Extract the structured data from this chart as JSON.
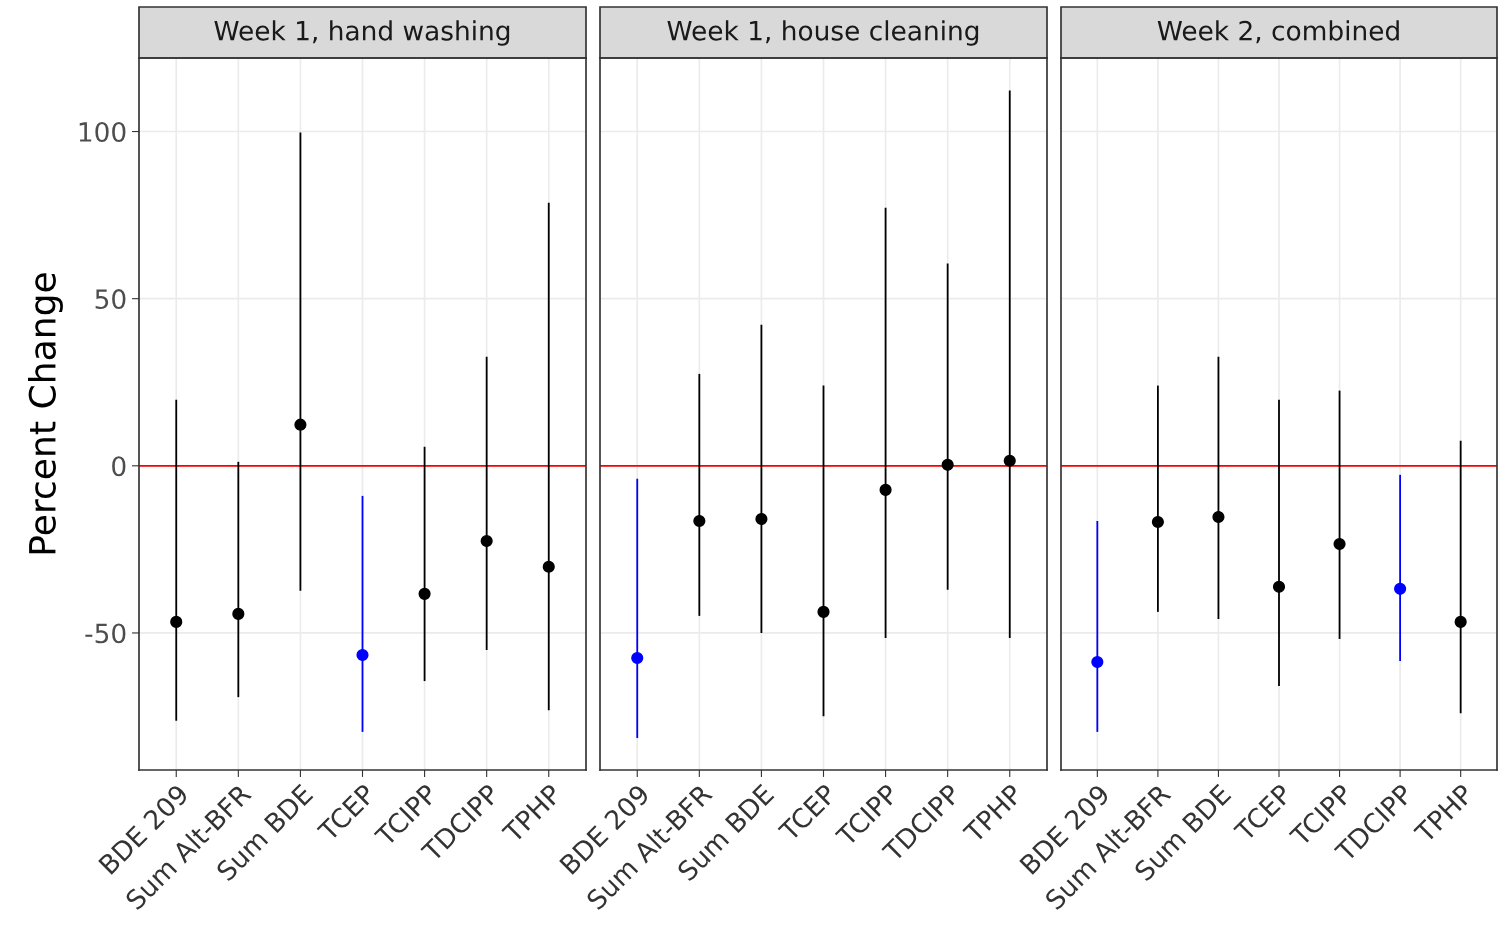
{
  "chart_data": [
    {
      "type": "scatter",
      "title": "Week 1, hand washing",
      "ylabel": "Percent Change",
      "categories": [
        "BDE 209",
        "Sum Alt-BFR",
        "Sum BDE",
        "TCEP",
        "TCIPP",
        "TDCIPP",
        "TPHP"
      ],
      "series": [
        {
          "colors": [
            "#000000",
            "#000000",
            "#000000",
            "#0000ff",
            "#000000",
            "#000000",
            "#000000"
          ],
          "values": [
            -46.7,
            -44.3,
            12.3,
            -56.6,
            -38.3,
            -22.5,
            -30.2
          ],
          "errors": [
            [
              -76.3,
              19.8
            ],
            [
              -69.2,
              1.2
            ],
            [
              -37.4,
              99.7
            ],
            [
              -79.6,
              -9.0
            ],
            [
              -64.4,
              5.7
            ],
            [
              -55.1,
              32.6
            ],
            [
              -73.1,
              78.7
            ]
          ]
        }
      ],
      "ylim": [
        -91,
        122
      ],
      "yticks": [
        -50,
        0,
        50,
        100
      ],
      "grid": true,
      "marker": "circle",
      "ref_lines": [
        {
          "axis": "y",
          "value": 0,
          "color": "#ff0000"
        }
      ]
    },
    {
      "type": "scatter",
      "title": "Week 1, house cleaning",
      "categories": [
        "BDE 209",
        "Sum Alt-BFR",
        "Sum BDE",
        "TCEP",
        "TCIPP",
        "TDCIPP",
        "TPHP"
      ],
      "series": [
        {
          "colors": [
            "#0000ff",
            "#000000",
            "#000000",
            "#000000",
            "#000000",
            "#000000",
            "#000000"
          ],
          "values": [
            -57.5,
            -16.5,
            -15.9,
            -43.7,
            -7.2,
            0.3,
            1.5
          ],
          "errors": [
            [
              -81.4,
              -3.9
            ],
            [
              -44.9,
              27.5
            ],
            [
              -50.0,
              42.2
            ],
            [
              -74.9,
              24.0
            ],
            [
              -51.5,
              77.2
            ],
            [
              -37.1,
              60.5
            ],
            [
              -51.5,
              112.3
            ]
          ]
        }
      ],
      "ylim": [
        -91,
        122
      ],
      "yticks": [
        -50,
        0,
        50,
        100
      ],
      "tick_labels": "x",
      "grid": true,
      "marker": "circle",
      "ref_lines": [
        {
          "axis": "y",
          "value": 0,
          "color": "#ff0000"
        }
      ]
    },
    {
      "type": "scatter",
      "title": "Week 2, combined",
      "categories": [
        "BDE 209",
        "Sum Alt-BFR",
        "Sum BDE",
        "TCEP",
        "TCIPP",
        "TDCIPP",
        "TPHP"
      ],
      "series": [
        {
          "colors": [
            "#0000ff",
            "#000000",
            "#000000",
            "#000000",
            "#000000",
            "#0000ff",
            "#000000"
          ],
          "values": [
            -58.7,
            -16.8,
            -15.3,
            -36.2,
            -23.4,
            -36.8,
            -46.7
          ],
          "errors": [
            [
              -79.6,
              -16.5
            ],
            [
              -43.7,
              24.0
            ],
            [
              -45.8,
              32.6
            ],
            [
              -65.9,
              19.8
            ],
            [
              -51.8,
              22.5
            ],
            [
              -58.4,
              -2.7
            ],
            [
              -74.0,
              7.5
            ]
          ]
        }
      ],
      "ylim": [
        -91,
        122
      ],
      "yticks": [
        -50,
        0,
        50,
        100
      ],
      "tick_labels": "x",
      "grid": true,
      "marker": "circle",
      "ref_lines": [
        {
          "axis": "y",
          "value": 0,
          "color": "#ff0000"
        }
      ]
    }
  ]
}
